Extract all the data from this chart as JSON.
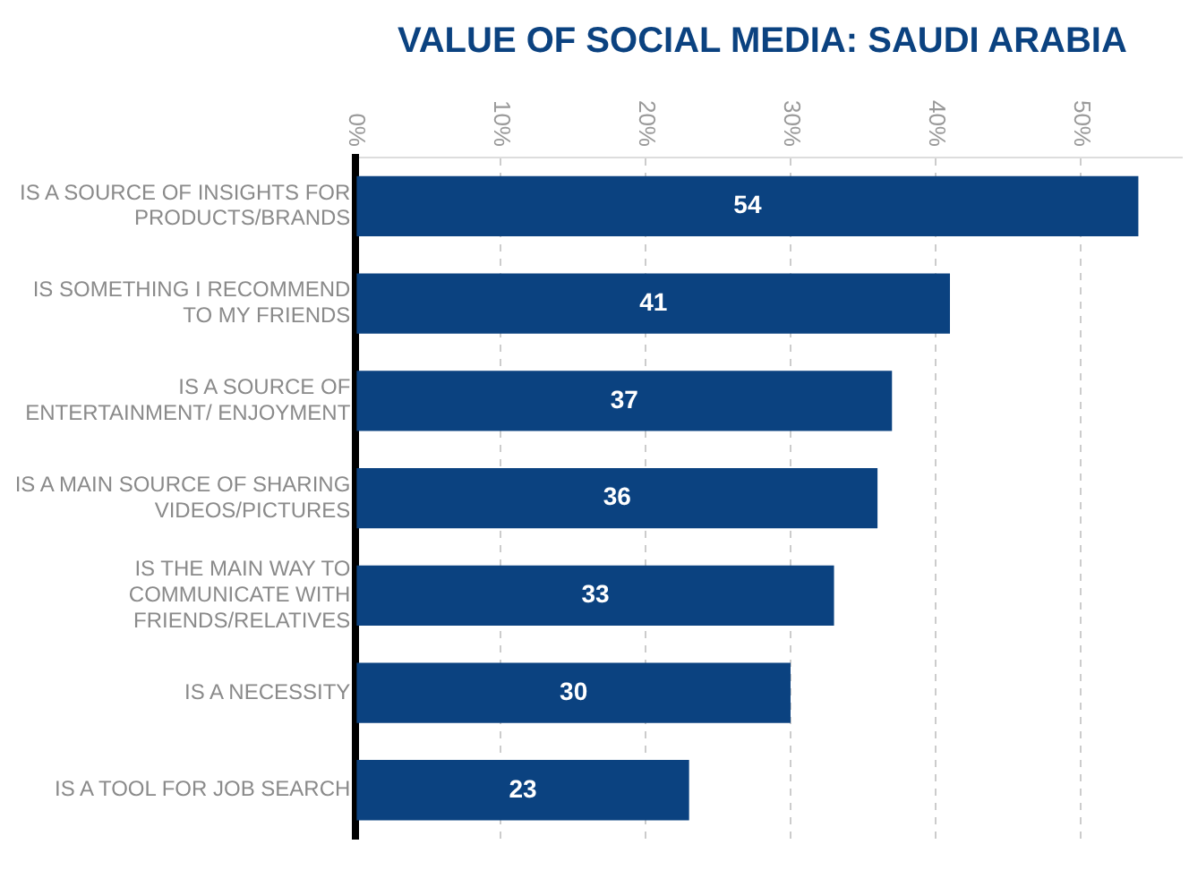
{
  "chart_data": {
    "type": "bar",
    "orientation": "horizontal",
    "title": "VALUE OF SOCIAL MEDIA: SAUDI ARABIA",
    "categories": [
      "IS A SOURCE OF INSIGHTS FOR PRODUCTS/BRANDS",
      "IS SOMETHING I RECOMMEND TO MY FRIENDS",
      "IS A SOURCE OF ENTERTAINMENT/ ENJOYMENT",
      "IS A MAIN SOURCE OF SHARING VIDEOS/PICTURES",
      "IS THE MAIN WAY TO COMMUNICATE WITH FRIENDS/RELATIVES",
      "IS A NECESSITY",
      "IS A TOOL FOR JOB SEARCH"
    ],
    "values": [
      54,
      41,
      37,
      36,
      33,
      30,
      23
    ],
    "color": "#0b4280",
    "xlim": [
      0,
      57
    ],
    "xticks": [
      {
        "value": 0,
        "label": "0%"
      },
      {
        "value": 10,
        "label": "10%"
      },
      {
        "value": 20,
        "label": "20%"
      },
      {
        "value": 30,
        "label": "30%"
      },
      {
        "value": 40,
        "label": "40%"
      },
      {
        "value": 50,
        "label": "50%"
      }
    ],
    "grid": "x",
    "legend": false,
    "data_labels": true
  }
}
